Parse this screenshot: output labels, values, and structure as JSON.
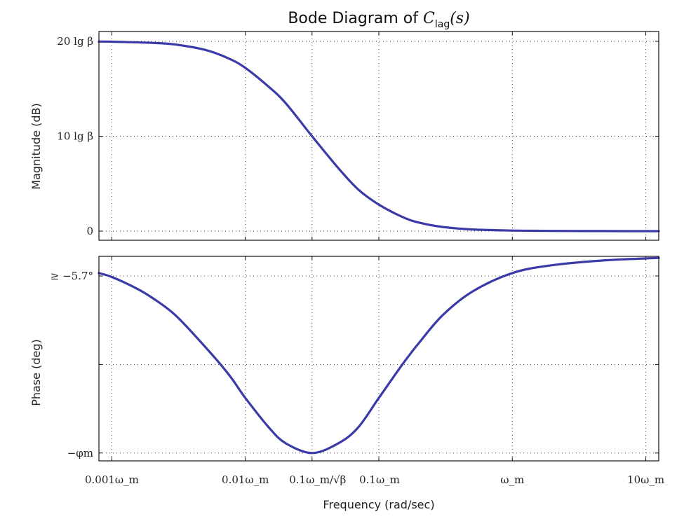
{
  "chart_data": [
    {
      "panel": "magnitude",
      "type": "line",
      "title": "Bode Diagram of C_lag(s)",
      "title_parts": {
        "main": "Bode Diagram of ",
        "sym": "C",
        "sub": "lag",
        "arg": "(s)"
      },
      "xlabel": "",
      "ylabel": "Magnitude (dB)",
      "x_scale": "log",
      "x_unit": "ω_m",
      "x_ticks_values": [
        0.001,
        0.01,
        0.0316,
        0.1,
        1,
        10
      ],
      "y_ticks": [
        {
          "value": 0,
          "label": "0"
        },
        {
          "value": 0.5,
          "label": "10 lg β"
        },
        {
          "value": 1,
          "label": "20 lg β"
        }
      ],
      "y_unit": "20 lg β",
      "ylim": [
        0,
        1
      ],
      "grid": true,
      "series": [
        {
          "color": "#3a3aa8",
          "x": [
            0.0008,
            0.001,
            0.002,
            0.003,
            0.005,
            0.0075,
            0.01,
            0.015,
            0.02,
            0.0316,
            0.05,
            0.07,
            0.1,
            0.15,
            0.2,
            0.3,
            0.5,
            1,
            2,
            5,
            12.5
          ],
          "y": [
            0.999,
            0.998,
            0.992,
            0.983,
            0.955,
            0.91,
            0.86,
            0.76,
            0.675,
            0.5,
            0.33,
            0.22,
            0.14,
            0.075,
            0.045,
            0.022,
            0.009,
            0.003,
            0.001,
            0.0002,
            0.0
          ]
        }
      ]
    },
    {
      "panel": "phase",
      "type": "line",
      "title": "",
      "xlabel": "Frequency (rad/sec)",
      "ylabel": "Phase (deg)",
      "x_scale": "log",
      "x_unit": "ω_m",
      "x_ticks_values": [
        0.001,
        0.01,
        0.0316,
        0.1,
        1,
        10
      ],
      "x_tick_labels": [
        "0.001ω_m",
        "0.01ω_m",
        "0.1ω_m/√β",
        "0.1ω_m",
        "ω_m",
        "10ω_m"
      ],
      "y_ticks": [
        {
          "value": -0.1,
          "label": "≥ −5.7°"
        },
        {
          "value": -0.55,
          "label": ""
        },
        {
          "value": -1.0,
          "label": "−φm"
        }
      ],
      "y_unit": "φm",
      "ylim": [
        -1.04,
        0
      ],
      "grid": true,
      "series": [
        {
          "color": "#3a3aa8",
          "x": [
            0.0008,
            0.001,
            0.0015,
            0.002,
            0.003,
            0.005,
            0.0075,
            0.01,
            0.015,
            0.02,
            0.0316,
            0.05,
            0.07,
            0.1,
            0.15,
            0.2,
            0.3,
            0.5,
            1,
            2,
            5,
            12.5
          ],
          "y": [
            -0.085,
            -0.105,
            -0.16,
            -0.21,
            -0.3,
            -0.46,
            -0.6,
            -0.72,
            -0.87,
            -0.95,
            -1.0,
            -0.95,
            -0.87,
            -0.72,
            -0.55,
            -0.44,
            -0.3,
            -0.18,
            -0.085,
            -0.045,
            -0.02,
            -0.008
          ]
        }
      ]
    }
  ]
}
